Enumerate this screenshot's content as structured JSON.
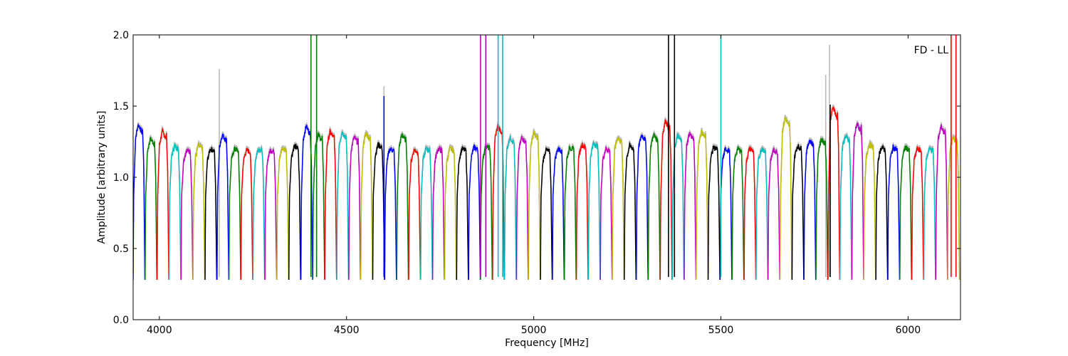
{
  "chart_data": {
    "type": "line",
    "title": "",
    "annotation": "FD - LL",
    "xlabel": "Frequency [MHz]",
    "ylabel": "Amplitude [arbitrary units]",
    "xlim": [
      3930,
      6140
    ],
    "ylim": [
      0,
      2
    ],
    "xticks": [
      4000,
      4500,
      5000,
      5500,
      6000
    ],
    "xtick_labels": [
      "4000",
      "4500",
      "5000",
      "5500",
      "6000"
    ],
    "yticks": [
      0,
      0.5,
      1,
      1.5,
      2
    ],
    "ytick_labels": [
      "0.0",
      "0.5",
      "1.0",
      "1.5",
      "2.0"
    ],
    "grid": false,
    "color_cycle": [
      "#0000ff",
      "#008000",
      "#ff0000",
      "#00bfbf",
      "#bf00bf",
      "#bfbf00",
      "#000000"
    ],
    "background_color": "#bbbbbb",
    "segment_start": 3930,
    "segment_width_mhz": 32,
    "segment_floor": 0.28,
    "segment_peaks": [
      1.37,
      1.27,
      1.32,
      1.22,
      1.19,
      1.22,
      1.2,
      1.3,
      1.2,
      1.19,
      1.2,
      1.19,
      1.2,
      1.22,
      1.36,
      1.3,
      1.32,
      1.32,
      1.28,
      1.31,
      1.23,
      1.2,
      1.3,
      1.19,
      1.2,
      1.2,
      1.2,
      1.2,
      1.21,
      1.22,
      1.36,
      1.28,
      1.28,
      1.31,
      1.19,
      1.2,
      1.21,
      1.23,
      1.24,
      1.2,
      1.28,
      1.22,
      1.3,
      1.3,
      1.4,
      1.29,
      1.31,
      1.32,
      1.21,
      1.2,
      1.2,
      1.2,
      1.2,
      1.19,
      1.42,
      1.22,
      1.26,
      1.27,
      1.5,
      1.29,
      1.38,
      1.23,
      1.21,
      1.21,
      1.21,
      1.2,
      1.2,
      1.36,
      1.28
    ],
    "spikes": [
      {
        "f": 4160,
        "y": 1.76,
        "series": "background"
      },
      {
        "f": 4600,
        "y": 1.64,
        "series": "background"
      },
      {
        "f": 4600,
        "y": 1.57,
        "color_index": 0
      },
      {
        "f": 4405,
        "y": 2.0,
        "color_index": 1
      },
      {
        "f": 4420,
        "y": 2.0,
        "color_index": 1
      },
      {
        "f": 4858,
        "y": 2.0,
        "color_index": 4
      },
      {
        "f": 4872,
        "y": 2.0,
        "color_index": 4
      },
      {
        "f": 4905,
        "y": 2.0,
        "color_index": 3
      },
      {
        "f": 4917,
        "y": 2.0,
        "color_index": 3
      },
      {
        "f": 5360,
        "y": 2.0,
        "color_index": 6
      },
      {
        "f": 5376,
        "y": 2.0,
        "color_index": 6
      },
      {
        "f": 5500,
        "y": 2.0,
        "color_index": 3
      },
      {
        "f": 5790,
        "y": 1.93,
        "series": "background"
      },
      {
        "f": 5780,
        "y": 1.72,
        "series": "background"
      },
      {
        "f": 5792,
        "y": 1.51,
        "color_index": 6
      },
      {
        "f": 6115,
        "y": 2.0,
        "color_index": 2
      },
      {
        "f": 6128,
        "y": 2.0,
        "color_index": 2
      }
    ]
  }
}
